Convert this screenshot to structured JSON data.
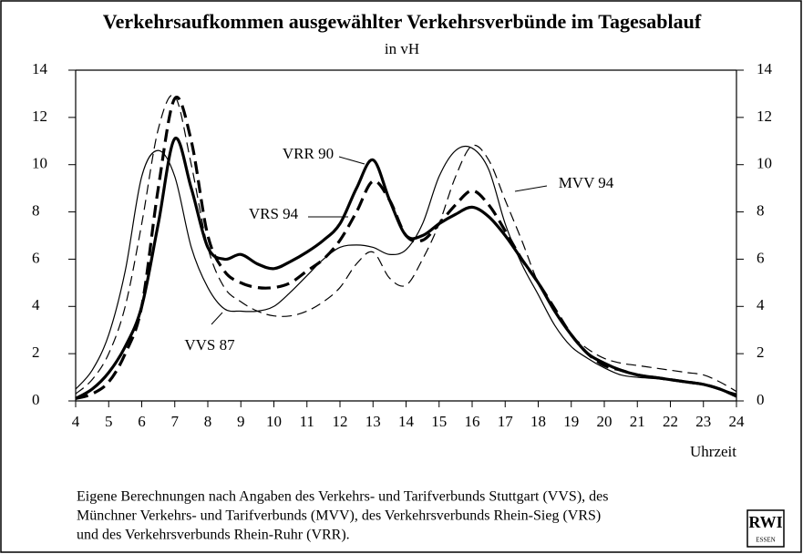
{
  "chart_data": {
    "type": "line",
    "title": "Verkehrsaufkommen ausgewählter Verkehrsverbünde im Tagesablauf",
    "subtitle": "in vH",
    "x_label": "Uhrzeit",
    "x": [
      4,
      4.5,
      5,
      5.5,
      6,
      6.5,
      7,
      7.5,
      8,
      8.5,
      9,
      9.5,
      10,
      10.5,
      11,
      11.5,
      12,
      12.5,
      13,
      13.5,
      14,
      14.5,
      15,
      15.5,
      16,
      16.5,
      17,
      17.5,
      18,
      18.5,
      19,
      19.5,
      20,
      20.5,
      21,
      21.5,
      22,
      22.5,
      23,
      23.5,
      24
    ],
    "series": [
      {
        "name": "VRR 90",
        "color": "#000000",
        "line_width": 3.2,
        "dashed": false,
        "values": [
          0.1,
          0.5,
          1.2,
          2.3,
          4.0,
          7.5,
          11.1,
          9.0,
          6.5,
          6.0,
          6.2,
          5.8,
          5.6,
          5.9,
          6.3,
          6.8,
          7.5,
          9.0,
          10.2,
          8.5,
          7.0,
          7.0,
          7.5,
          7.9,
          8.2,
          7.8,
          7.0,
          6.0,
          5.0,
          3.8,
          2.8,
          2.0,
          1.6,
          1.3,
          1.1,
          1.0,
          0.9,
          0.8,
          0.7,
          0.5,
          0.2
        ]
      },
      {
        "name": "VRS 94",
        "color": "#000000",
        "line_width": 3.2,
        "dashed": true,
        "values": [
          0.1,
          0.3,
          0.8,
          2.0,
          4.0,
          9.0,
          12.8,
          11.0,
          7.0,
          5.5,
          5.0,
          4.8,
          4.8,
          5.0,
          5.5,
          6.0,
          6.8,
          8.0,
          9.3,
          8.5,
          7.0,
          6.8,
          7.5,
          8.3,
          8.9,
          8.3,
          7.2,
          6.0,
          5.0,
          3.9,
          2.8,
          2.0,
          1.5,
          1.3,
          1.1,
          1.0,
          0.9,
          0.8,
          0.7,
          0.5,
          0.2
        ]
      },
      {
        "name": "VVS 87",
        "color": "#000000",
        "line_width": 1.2,
        "dashed": false,
        "values": [
          0.5,
          1.3,
          2.8,
          5.5,
          9.5,
          10.6,
          9.5,
          6.5,
          4.8,
          3.9,
          3.8,
          3.8,
          4.0,
          4.6,
          5.3,
          6.0,
          6.5,
          6.6,
          6.5,
          6.2,
          6.4,
          7.5,
          9.5,
          10.6,
          10.7,
          9.8,
          7.5,
          5.8,
          4.5,
          3.2,
          2.3,
          1.8,
          1.4,
          1.1,
          1.0,
          0.95,
          0.9,
          0.8,
          0.7,
          0.5,
          0.3
        ]
      },
      {
        "name": "MVV 94",
        "color": "#000000",
        "line_width": 1.2,
        "dashed": true,
        "values": [
          0.3,
          0.9,
          2.0,
          4.0,
          7.5,
          11.5,
          12.9,
          10.0,
          6.5,
          4.8,
          4.2,
          3.8,
          3.6,
          3.6,
          3.8,
          4.2,
          4.8,
          5.8,
          6.3,
          5.2,
          4.9,
          6.0,
          7.5,
          9.5,
          10.8,
          10.2,
          8.5,
          6.8,
          5.0,
          3.8,
          2.8,
          2.2,
          1.8,
          1.6,
          1.5,
          1.4,
          1.3,
          1.2,
          1.1,
          0.8,
          0.4
        ]
      }
    ],
    "xlim": [
      4,
      24
    ],
    "xticks": [
      4,
      5,
      6,
      7,
      8,
      9,
      10,
      11,
      12,
      13,
      14,
      15,
      16,
      17,
      18,
      19,
      20,
      21,
      22,
      23,
      24
    ],
    "ylim": [
      0,
      14
    ],
    "yticks": [
      0,
      2,
      4,
      6,
      8,
      10,
      12,
      14
    ],
    "y2lim": [
      0,
      14
    ],
    "y2ticks": [
      0,
      2,
      4,
      6,
      8,
      10,
      12,
      14
    ],
    "note": [
      "Eigene Berechnungen nach Angaben des Verkehrs- und Tarifverbunds Stuttgart (VVS), des",
      "Münchner Verkehrs- und Tarifverbunds (MVV), des Verkehrsverbunds Rhein-Sieg (VRS)",
      "und des Verkehrsverbunds Rhein-Ruhr (VRR)."
    ],
    "logo": {
      "text": "RWI",
      "sub": "ESSEN"
    }
  }
}
